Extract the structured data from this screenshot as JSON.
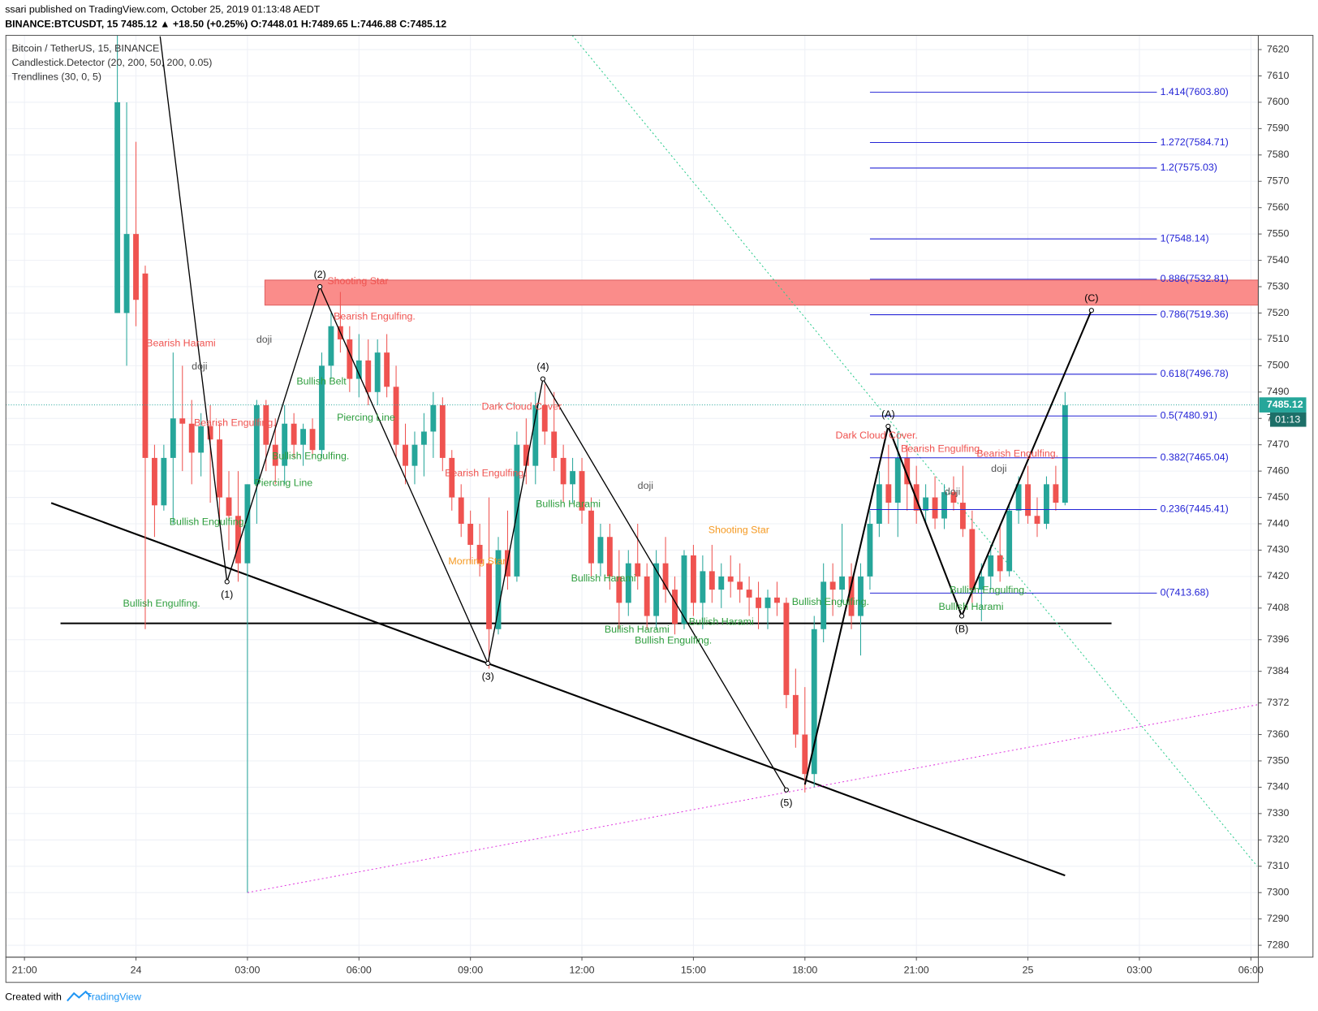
{
  "header": {
    "publisher": "ssari published on TradingView.com, October 25, 2019 01:13:48 AEDT",
    "quote": "BINANCE:BTCUSDT, 15  7485.12 ▲ +18.50 (+0.25%) O:7448.01 H:7489.65 L:7446.88 C:7485.12"
  },
  "legend": [
    "Bitcoin / TetherUS, 15, BINANCE",
    "Candlestick.Detector (20, 200, 50, 200, 0.05)",
    "Trendlines (30, 0, 5)"
  ],
  "footer": {
    "created": "Created with",
    "brand": "TradingView"
  },
  "chart_data": {
    "type": "candlestick",
    "up_color": "#26a69a",
    "down_color": "#ef5350",
    "grid": true,
    "xlim": [
      -0.5,
      33.2
    ],
    "ylim": [
      7275.5,
      7625.4
    ],
    "xticks": [
      {
        "value": 0,
        "label": "21:00"
      },
      {
        "value": 3,
        "label": "24"
      },
      {
        "value": 6,
        "label": "03:00"
      },
      {
        "value": 9,
        "label": "06:00"
      },
      {
        "value": 12,
        "label": "09:00"
      },
      {
        "value": 15,
        "label": "12:00"
      },
      {
        "value": 18,
        "label": "15:00"
      },
      {
        "value": 21,
        "label": "18:00"
      },
      {
        "value": 24,
        "label": "21:00"
      },
      {
        "value": 27,
        "label": "25"
      },
      {
        "value": 30,
        "label": "03:00"
      },
      {
        "value": 33,
        "label": "06:00"
      }
    ],
    "yticks": [
      7280,
      7290,
      7300,
      7310,
      7320,
      7330,
      7340,
      7350,
      7360,
      7372,
      7384,
      7396,
      7408,
      7420,
      7430,
      7440,
      7450,
      7460,
      7470,
      7480,
      7490,
      7500,
      7510,
      7520,
      7530,
      7540,
      7550,
      7560,
      7570,
      7580,
      7590,
      7600,
      7610,
      7620
    ],
    "last_price": 7485.12,
    "countdown": "01:13",
    "last_color": "#26a69a",
    "x": [
      2.5,
      2.75,
      3,
      3.25,
      3.5,
      3.75,
      4,
      4.25,
      4.5,
      4.75,
      5,
      5.25,
      5.5,
      5.75,
      6,
      6.25,
      6.5,
      6.75,
      7,
      7.25,
      7.5,
      7.75,
      8,
      8.25,
      8.5,
      8.75,
      9,
      9.25,
      9.5,
      9.75,
      10,
      10.25,
      10.5,
      10.75,
      11,
      11.25,
      11.5,
      11.75,
      12,
      12.25,
      12.5,
      12.75,
      13,
      13.25,
      13.5,
      13.75,
      14,
      14.25,
      14.5,
      14.75,
      15,
      15.25,
      15.5,
      15.75,
      16,
      16.25,
      16.5,
      16.75,
      17,
      17.25,
      17.5,
      17.75,
      18,
      18.25,
      18.5,
      18.75,
      19,
      19.25,
      19.5,
      19.75,
      20,
      20.25,
      20.5,
      20.75,
      21,
      21.25,
      21.5,
      21.75,
      22,
      22.25,
      22.5,
      22.75,
      23,
      23.25,
      23.5,
      23.75,
      24,
      24.25,
      24.5,
      24.75,
      25,
      25.25,
      25.5,
      25.75,
      26,
      26.25,
      26.5,
      26.75,
      27,
      27.25,
      27.5,
      27.75,
      28
    ],
    "candles": [
      [
        7520,
        7640,
        7520,
        7600
      ],
      [
        7520,
        7600,
        7500,
        7550
      ],
      [
        7550,
        7585,
        7515,
        7525
      ],
      [
        7535,
        7538,
        7400,
        7465
      ],
      [
        7465,
        7470,
        7435,
        7447
      ],
      [
        7447,
        7470,
        7445,
        7465
      ],
      [
        7465,
        7505,
        7440,
        7480
      ],
      [
        7480,
        7500,
        7460,
        7478
      ],
      [
        7478,
        7487,
        7455,
        7467
      ],
      [
        7467,
        7482,
        7458,
        7477
      ],
      [
        7477,
        7485,
        7448,
        7472
      ],
      [
        7472,
        7478,
        7440,
        7450
      ],
      [
        7450,
        7460,
        7430,
        7443
      ],
      [
        7443,
        7460,
        7418,
        7425
      ],
      [
        7425,
        7455,
        7300,
        7455
      ],
      [
        7455,
        7487,
        7440,
        7485
      ],
      [
        7485,
        7487,
        7460,
        7470
      ],
      [
        7470,
        7480,
        7455,
        7462
      ],
      [
        7462,
        7485,
        7455,
        7478
      ],
      [
        7478,
        7482,
        7465,
        7470
      ],
      [
        7470,
        7478,
        7462,
        7476
      ],
      [
        7476,
        7480,
        7465,
        7468
      ],
      [
        7468,
        7505,
        7465,
        7500
      ],
      [
        7500,
        7520,
        7495,
        7515
      ],
      [
        7515,
        7528,
        7505,
        7510
      ],
      [
        7510,
        7515,
        7490,
        7495
      ],
      [
        7495,
        7512,
        7488,
        7502
      ],
      [
        7502,
        7510,
        7485,
        7490
      ],
      [
        7490,
        7510,
        7485,
        7505
      ],
      [
        7505,
        7512,
        7488,
        7492
      ],
      [
        7492,
        7500,
        7465,
        7470
      ],
      [
        7470,
        7478,
        7455,
        7462
      ],
      [
        7462,
        7475,
        7455,
        7470
      ],
      [
        7470,
        7482,
        7458,
        7475
      ],
      [
        7475,
        7490,
        7465,
        7485
      ],
      [
        7485,
        7488,
        7460,
        7465
      ],
      [
        7465,
        7468,
        7445,
        7450
      ],
      [
        7450,
        7455,
        7435,
        7440
      ],
      [
        7440,
        7445,
        7425,
        7432
      ],
      [
        7432,
        7440,
        7420,
        7425
      ],
      [
        7425,
        7450,
        7385,
        7400
      ],
      [
        7400,
        7435,
        7398,
        7430
      ],
      [
        7430,
        7445,
        7415,
        7420
      ],
      [
        7420,
        7475,
        7418,
        7470
      ],
      [
        7470,
        7480,
        7455,
        7462
      ],
      [
        7462,
        7490,
        7455,
        7485
      ],
      [
        7485,
        7493,
        7470,
        7475
      ],
      [
        7475,
        7490,
        7460,
        7465
      ],
      [
        7465,
        7470,
        7448,
        7455
      ],
      [
        7455,
        7465,
        7448,
        7460
      ],
      [
        7460,
        7465,
        7440,
        7445
      ],
      [
        7445,
        7450,
        7420,
        7425
      ],
      [
        7425,
        7440,
        7420,
        7435
      ],
      [
        7435,
        7440,
        7415,
        7420
      ],
      [
        7420,
        7430,
        7400,
        7410
      ],
      [
        7410,
        7430,
        7405,
        7425
      ],
      [
        7425,
        7440,
        7415,
        7420
      ],
      [
        7420,
        7425,
        7400,
        7405
      ],
      [
        7405,
        7430,
        7400,
        7425
      ],
      [
        7425,
        7435,
        7410,
        7415
      ],
      [
        7415,
        7420,
        7398,
        7402
      ],
      [
        7402,
        7430,
        7400,
        7428
      ],
      [
        7428,
        7432,
        7405,
        7410
      ],
      [
        7410,
        7428,
        7400,
        7422
      ],
      [
        7422,
        7432,
        7410,
        7415
      ],
      [
        7415,
        7425,
        7408,
        7420
      ],
      [
        7420,
        7428,
        7412,
        7418
      ],
      [
        7418,
        7425,
        7410,
        7415
      ],
      [
        7415,
        7420,
        7405,
        7412
      ],
      [
        7412,
        7418,
        7400,
        7408
      ],
      [
        7408,
        7415,
        7400,
        7412
      ],
      [
        7412,
        7418,
        7405,
        7410
      ],
      [
        7410,
        7412,
        7370,
        7375
      ],
      [
        7375,
        7385,
        7355,
        7360
      ],
      [
        7360,
        7378,
        7338,
        7345
      ],
      [
        7345,
        7405,
        7340,
        7400
      ],
      [
        7400,
        7425,
        7395,
        7418
      ],
      [
        7418,
        7425,
        7405,
        7415
      ],
      [
        7415,
        7440,
        7410,
        7420
      ],
      [
        7420,
        7425,
        7400,
        7405
      ],
      [
        7405,
        7425,
        7390,
        7420
      ],
      [
        7420,
        7445,
        7415,
        7440
      ],
      [
        7440,
        7460,
        7435,
        7455
      ],
      [
        7455,
        7470,
        7440,
        7448
      ],
      [
        7448,
        7475,
        7435,
        7465
      ],
      [
        7465,
        7470,
        7445,
        7455
      ],
      [
        7455,
        7462,
        7440,
        7445
      ],
      [
        7445,
        7455,
        7440,
        7450
      ],
      [
        7450,
        7458,
        7438,
        7442
      ],
      [
        7442,
        7455,
        7438,
        7452
      ],
      [
        7452,
        7458,
        7445,
        7448
      ],
      [
        7448,
        7462,
        7435,
        7438
      ],
      [
        7438,
        7445,
        7410,
        7415
      ],
      [
        7415,
        7425,
        7403,
        7420
      ],
      [
        7420,
        7432,
        7415,
        7428
      ],
      [
        7428,
        7440,
        7418,
        7422
      ],
      [
        7422,
        7448,
        7420,
        7445
      ],
      [
        7445,
        7458,
        7440,
        7455
      ],
      [
        7455,
        7462,
        7440,
        7443
      ],
      [
        7443,
        7450,
        7435,
        7440
      ],
      [
        7440,
        7458,
        7438,
        7455
      ],
      [
        7455,
        7462,
        7445,
        7448
      ],
      [
        7448,
        7490,
        7447,
        7485
      ]
    ],
    "zone": {
      "x": [
        6.47,
        33.2
      ],
      "y": [
        7523,
        7532.5
      ],
      "color": "#fa8c8a"
    },
    "lines": [
      {
        "x": [
          0.72,
          28.0
        ],
        "y": [
          7447.9,
          7306.5
        ],
        "color": "#000000",
        "dash": false,
        "width": 2
      },
      {
        "x": [
          0.97,
          29.25
        ],
        "y": [
          7402.2,
          7402.2
        ],
        "color": "#000000",
        "dash": false,
        "width": 2
      },
      {
        "x": [
          6.0,
          33.17
        ],
        "y": [
          7300,
          7371.3
        ],
        "color": "#e040e0",
        "dash": true,
        "width": 1
      },
      {
        "x": [
          14.74,
          33.17
        ],
        "y": [
          7625.4,
          7310
        ],
        "color": "#2ecc8f",
        "dash": true,
        "width": 1
      }
    ],
    "fib": {
      "x": [
        22.75,
        30.47
      ],
      "color": "#2424d6",
      "levels": [
        {
          "label": "1.414(7603.80)",
          "value": 7603.8
        },
        {
          "label": "1.272(7584.71)",
          "value": 7584.71
        },
        {
          "label": "1.2(7575.03)",
          "value": 7575.03
        },
        {
          "label": "1(7548.14)",
          "value": 7548.14
        },
        {
          "label": "0.886(7532.81)",
          "value": 7532.81
        },
        {
          "label": "0.786(7519.36)",
          "value": 7519.36
        },
        {
          "label": "0.618(7496.78)",
          "value": 7496.78
        },
        {
          "label": "0.5(7480.91)",
          "value": 7480.91
        },
        {
          "label": "0.382(7465.04)",
          "value": 7465.04
        },
        {
          "label": "0.236(7445.41)",
          "value": 7445.41
        },
        {
          "label": "0(7413.68)",
          "value": 7413.68
        }
      ]
    },
    "impulse": {
      "x": [
        3.65,
        5.45,
        7.95,
        12.47,
        13.95,
        20.5
      ],
      "y": [
        7625,
        7418,
        7530,
        7387,
        7495,
        7339
      ],
      "labels": [
        null,
        "(1)",
        "(2)",
        "(3)",
        "(4)",
        "(5)"
      ]
    },
    "correction": {
      "x": [
        21.0,
        23.24,
        25.22,
        28.71
      ],
      "y": [
        7341,
        7477,
        7405,
        7521
      ],
      "labels": [
        null,
        "(A)",
        "(B)",
        "(C)"
      ]
    },
    "annotations": [
      {
        "text": "Bearish Harami",
        "x": 4.21,
        "y": 7508.3,
        "color": "#ef5350"
      },
      {
        "text": "doji",
        "x": 4.71,
        "y": 7499.6,
        "color": "#555555"
      },
      {
        "text": "doji",
        "x": 6.45,
        "y": 7509.8,
        "color": "#555555"
      },
      {
        "text": "Bearish Engulfing.",
        "x": 5.66,
        "y": 7478.2,
        "color": "#ef5350"
      },
      {
        "text": "Bullish Engulfing.",
        "x": 3.69,
        "y": 7409.6,
        "color": "#2e9e3e"
      },
      {
        "text": "Bullish Engulfing.",
        "x": 4.94,
        "y": 7440.6,
        "color": "#2e9e3e"
      },
      {
        "text": "Piercing Line",
        "x": 6.97,
        "y": 7455.3,
        "color": "#2e9e3e"
      },
      {
        "text": "Bullish Engulfing.",
        "x": 7.7,
        "y": 7465.5,
        "color": "#2e9e3e"
      },
      {
        "text": "Shooting Star",
        "x": 8.97,
        "y": 7531.9,
        "color": "#ef5350"
      },
      {
        "text": "Bearish Engulfing.",
        "x": 9.42,
        "y": 7518.5,
        "color": "#ef5350"
      },
      {
        "text": "Bullish Belt",
        "x": 7.99,
        "y": 7493.9,
        "color": "#2e9e3e"
      },
      {
        "text": "Piercing Line",
        "x": 9.19,
        "y": 7480.2,
        "color": "#2e9e3e"
      },
      {
        "text": "Dark Cloud Cover",
        "x": 13.38,
        "y": 7484.3,
        "color": "#ef5350"
      },
      {
        "text": "Bearish Engulfing.",
        "x": 12.41,
        "y": 7459.1,
        "color": "#ef5350"
      },
      {
        "text": "Morning Star",
        "x": 12.18,
        "y": 7425.6,
        "color": "#f59a23"
      },
      {
        "text": "Bullish Harami",
        "x": 14.63,
        "y": 7447.3,
        "color": "#2e9e3e"
      },
      {
        "text": "Bullish Harami",
        "x": 15.58,
        "y": 7419.2,
        "color": "#2e9e3e"
      },
      {
        "text": "doji",
        "x": 16.71,
        "y": 7454.3,
        "color": "#555555"
      },
      {
        "text": "Bullish Harami",
        "x": 16.48,
        "y": 7399.7,
        "color": "#2e9e3e"
      },
      {
        "text": "Bullish Engulfing.",
        "x": 17.46,
        "y": 7395.5,
        "color": "#2e9e3e"
      },
      {
        "text": "Bullish Harami",
        "x": 18.75,
        "y": 7402.6,
        "color": "#2e9e3e"
      },
      {
        "text": "Shooting Star",
        "x": 19.22,
        "y": 7437.4,
        "color": "#f59a23"
      },
      {
        "text": "Bullish Engulfing.",
        "x": 21.69,
        "y": 7410.2,
        "color": "#2e9e3e"
      },
      {
        "text": "Dark Cloud Cover.",
        "x": 22.93,
        "y": 7473.4,
        "color": "#ef5350"
      },
      {
        "text": "Bearish Engulfing.",
        "x": 24.68,
        "y": 7468.3,
        "color": "#ef5350"
      },
      {
        "text": "Bearish Engulfing.",
        "x": 26.72,
        "y": 7466.4,
        "color": "#ef5350"
      },
      {
        "text": "doji",
        "x": 26.22,
        "y": 7460.7,
        "color": "#555555"
      },
      {
        "text": "doji",
        "x": 24.97,
        "y": 7452.0,
        "color": "#555555"
      },
      {
        "text": "Bullish Engulfing.",
        "x": 25.94,
        "y": 7414.7,
        "color": "#2e9e3e"
      },
      {
        "text": "Bullish Harami",
        "x": 25.47,
        "y": 7408.3,
        "color": "#2e9e3e"
      }
    ]
  }
}
